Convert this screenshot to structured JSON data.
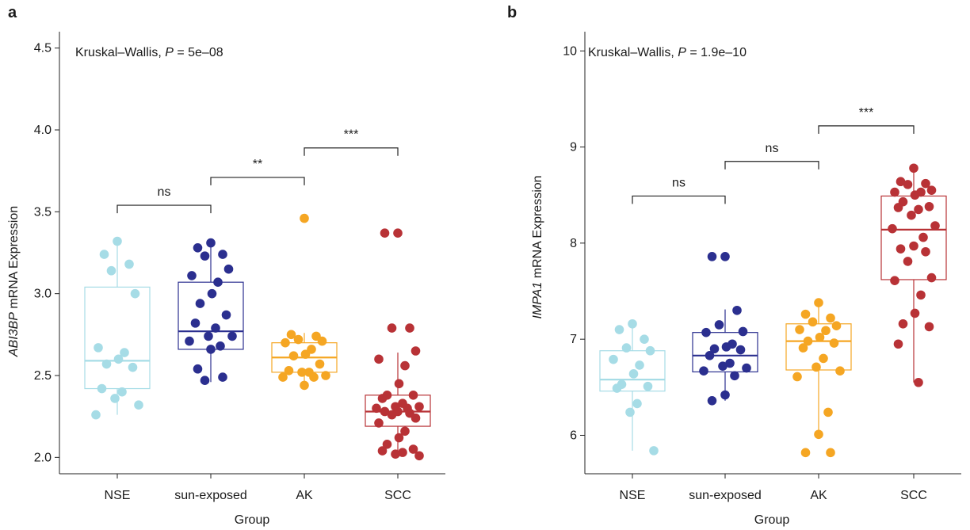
{
  "chart_data": [
    {
      "type": "box",
      "panel_label": "a",
      "annotation": {
        "prefix": "Kruskal–Wallis, ",
        "p_symbol": "P",
        "p_text": " = 5e–08"
      },
      "xlabel": "Group",
      "ylabel_gene": "ABI3BP",
      "ylabel_rest": " mRNA Expression",
      "categories": [
        "NSE",
        "sun-exposed",
        "AK",
        "SCC"
      ],
      "colors": [
        "#a6dce6",
        "#2b2f8f",
        "#f5a623",
        "#b83236"
      ],
      "ylim": [
        1.9,
        4.6
      ],
      "yticks": [
        2.0,
        2.5,
        3.0,
        3.5,
        4.0,
        4.5
      ],
      "ytick_labels": [
        "2.0",
        "2.5",
        "3.0",
        "3.5",
        "4.0",
        "4.5"
      ],
      "boxes": [
        {
          "q1": 2.42,
          "median": 2.59,
          "q3": 3.04,
          "whisker_low": 2.26,
          "whisker_high": 3.32
        },
        {
          "q1": 2.66,
          "median": 2.77,
          "q3": 3.07,
          "whisker_low": 2.46,
          "whisker_high": 3.32
        },
        {
          "q1": 2.52,
          "median": 2.61,
          "q3": 2.7,
          "whisker_low": 2.44,
          "whisker_high": 2.76
        },
        {
          "q1": 2.19,
          "median": 2.28,
          "q3": 2.38,
          "whisker_low": 2.01,
          "whisker_high": 2.64
        }
      ],
      "points": [
        {
          "group": 0,
          "values": [
            3.32,
            3.24,
            3.18,
            3.14,
            3.0,
            2.67,
            2.64,
            2.6,
            2.57,
            2.55,
            2.42,
            2.4,
            2.36,
            2.32,
            2.26
          ]
        },
        {
          "group": 1,
          "values": [
            3.31,
            3.28,
            3.24,
            3.23,
            3.15,
            3.11,
            3.07,
            3.0,
            2.94,
            2.87,
            2.82,
            2.79,
            2.74,
            2.74,
            2.71,
            2.68,
            2.66,
            2.54,
            2.49,
            2.47
          ]
        },
        {
          "group": 2,
          "values": [
            3.46,
            2.75,
            2.74,
            2.72,
            2.71,
            2.7,
            2.66,
            2.63,
            2.62,
            2.57,
            2.53,
            2.52,
            2.52,
            2.5,
            2.49,
            2.49,
            2.44
          ]
        },
        {
          "group": 3,
          "values": [
            3.37,
            3.37,
            2.79,
            2.79,
            2.65,
            2.6,
            2.56,
            2.45,
            2.38,
            2.38,
            2.36,
            2.33,
            2.31,
            2.31,
            2.3,
            2.3,
            2.28,
            2.28,
            2.27,
            2.26,
            2.24,
            2.21,
            2.16,
            2.12,
            2.08,
            2.05,
            2.04,
            2.03,
            2.02,
            2.01
          ]
        }
      ],
      "comparisons": [
        {
          "from": 0,
          "to": 1,
          "y": 3.54,
          "label": "ns"
        },
        {
          "from": 1,
          "to": 2,
          "y": 3.71,
          "label": "**"
        },
        {
          "from": 2,
          "to": 3,
          "y": 3.89,
          "label": "***"
        }
      ]
    },
    {
      "type": "box",
      "panel_label": "b",
      "annotation": {
        "prefix": "Kruskal–Wallis, ",
        "p_symbol": "P",
        "p_text": " = 1.9e–10"
      },
      "xlabel": "Group",
      "ylabel_gene": "IMPA1",
      "ylabel_rest": " mRNA Expression",
      "categories": [
        "NSE",
        "sun-exposed",
        "AK",
        "SCC"
      ],
      "colors": [
        "#a6dce6",
        "#2b2f8f",
        "#f5a623",
        "#b83236"
      ],
      "ylim": [
        5.6,
        10.2
      ],
      "yticks": [
        6,
        7,
        8,
        9,
        10
      ],
      "ytick_labels": [
        "6",
        "7",
        "8",
        "9",
        "10"
      ],
      "boxes": [
        {
          "q1": 6.46,
          "median": 6.58,
          "q3": 6.88,
          "whisker_low": 5.84,
          "whisker_high": 7.16
        },
        {
          "q1": 6.66,
          "median": 6.83,
          "q3": 7.07,
          "whisker_low": 6.36,
          "whisker_high": 7.31
        },
        {
          "q1": 6.68,
          "median": 6.98,
          "q3": 7.16,
          "whisker_low": 6.02,
          "whisker_high": 7.38
        },
        {
          "q1": 7.62,
          "median": 8.14,
          "q3": 8.49,
          "whisker_low": 6.55,
          "whisker_high": 8.78
        }
      ],
      "points": [
        {
          "group": 0,
          "values": [
            7.16,
            7.1,
            7.0,
            6.91,
            6.88,
            6.79,
            6.73,
            6.64,
            6.53,
            6.51,
            6.49,
            6.33,
            6.24,
            5.84
          ]
        },
        {
          "group": 1,
          "values": [
            7.86,
            7.86,
            7.3,
            7.15,
            7.08,
            7.07,
            6.95,
            6.92,
            6.9,
            6.89,
            6.83,
            6.75,
            6.72,
            6.7,
            6.67,
            6.62,
            6.42,
            6.36
          ]
        },
        {
          "group": 2,
          "values": [
            7.38,
            7.26,
            7.22,
            7.18,
            7.14,
            7.1,
            7.09,
            7.02,
            6.98,
            6.96,
            6.91,
            6.8,
            6.71,
            6.67,
            6.61,
            6.24,
            6.01,
            5.82,
            5.82
          ]
        },
        {
          "group": 3,
          "values": [
            8.78,
            8.64,
            8.62,
            8.61,
            8.55,
            8.53,
            8.53,
            8.5,
            8.43,
            8.38,
            8.37,
            8.35,
            8.29,
            8.18,
            8.15,
            8.06,
            7.97,
            7.94,
            7.91,
            7.81,
            7.64,
            7.61,
            7.46,
            7.27,
            7.16,
            7.13,
            6.95,
            6.55
          ]
        }
      ],
      "comparisons": [
        {
          "from": 0,
          "to": 1,
          "y": 8.49,
          "label": "ns"
        },
        {
          "from": 1,
          "to": 2,
          "y": 8.85,
          "label": "ns"
        },
        {
          "from": 2,
          "to": 3,
          "y": 9.22,
          "label": "***"
        }
      ]
    }
  ]
}
